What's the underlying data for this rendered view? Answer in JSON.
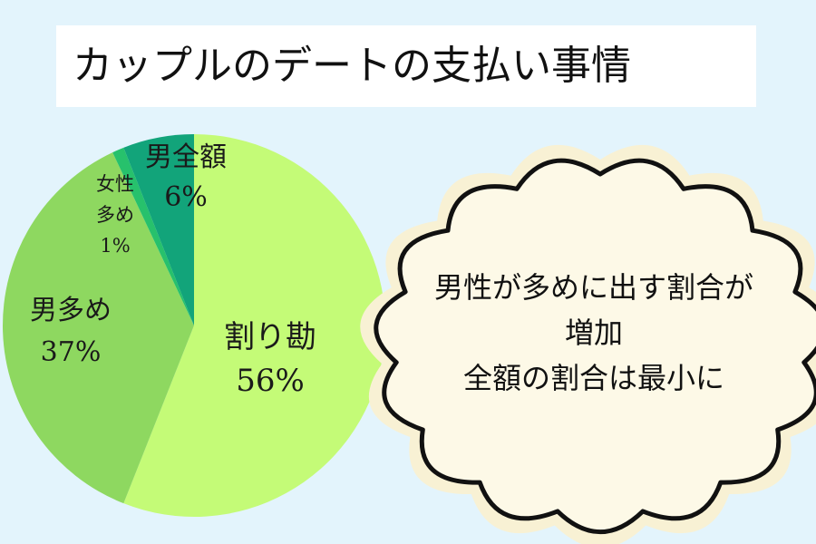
{
  "title": "カップルのデートの支払い事情",
  "chart_data": {
    "type": "pie",
    "slices": [
      {
        "label": "割り勘",
        "value": 56,
        "value_label": "56%",
        "color": "#c4fb77"
      },
      {
        "label": "男多め",
        "value": 37,
        "value_label": "37%",
        "color": "#8ed860"
      },
      {
        "label": "女性多め",
        "value": 1,
        "value_label": "1%",
        "color": "#27c16c"
      },
      {
        "label": "男全額",
        "value": 6,
        "value_label": "6%",
        "color": "#12a47a"
      }
    ],
    "start": "top, clockwise"
  },
  "labels": {
    "warikan": {
      "name": "割り勘",
      "pct": "56%"
    },
    "otoko_ooi": {
      "name": "男多め",
      "pct": "37%"
    },
    "josei_ooi": {
      "line1": "女性",
      "line2": "多め",
      "pct": "1%"
    },
    "otoko_zengaku": {
      "name": "男全額",
      "pct": "6%"
    }
  },
  "callout": {
    "line1": "男性が多めに出す割合が",
    "line2": "増加",
    "line3": "全額の割合は最小に"
  },
  "colors": {
    "background": "#e3f4fc",
    "cloud_fill": "#fdf9e7",
    "cloud_glow": "#f8f1d4",
    "cloud_outline": "#111111"
  }
}
